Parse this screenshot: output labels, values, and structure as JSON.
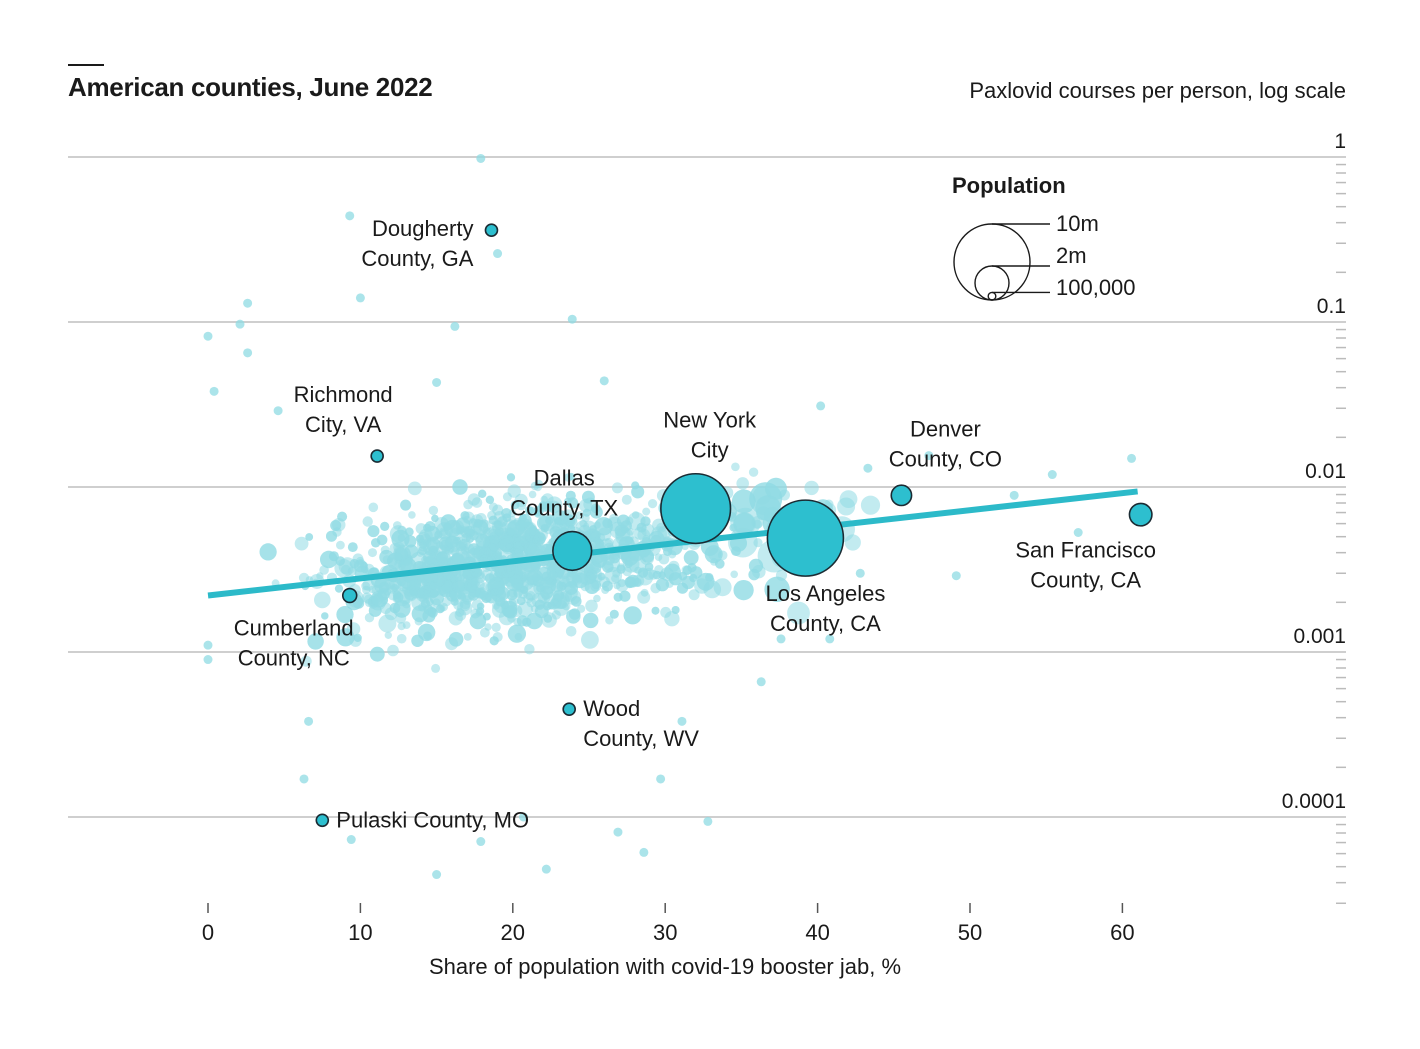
{
  "chart_data": {
    "type": "scatter",
    "title": "American counties, June 2022",
    "ylabel": "Paxlovid courses per person, log scale",
    "xlabel": "Share of population with covid-19 booster jab, %",
    "x_ticks": [
      "0",
      "10",
      "20",
      "30",
      "40",
      "50",
      "60"
    ],
    "x_tick_values": [
      0,
      10,
      20,
      30,
      40,
      50,
      60
    ],
    "xlim": [
      -9,
      75
    ],
    "y_scale": "log",
    "y_ticks": [
      "1",
      "0.1",
      "0.01",
      "0.001",
      "0.0001"
    ],
    "y_tick_values": [
      1,
      0.1,
      0.01,
      0.001,
      0.0001
    ],
    "ylim": [
      2e-05,
      1
    ],
    "trend_line": {
      "x": [
        0,
        61
      ],
      "y": [
        0.0022,
        0.0094
      ]
    },
    "highlighted": [
      {
        "name": "Dougherty County, GA",
        "label": [
          "Dougherty",
          "County, GA"
        ],
        "x": 18.6,
        "y": 0.36,
        "population": 88000,
        "label_pos": "left"
      },
      {
        "name": "Richmond City, VA",
        "label": [
          "Richmond",
          "City, VA"
        ],
        "x": 11.1,
        "y": 0.0154,
        "population": 227000,
        "label_pos": "above-left"
      },
      {
        "name": "Cumberland County, NC",
        "label": [
          "Cumberland",
          "County, NC"
        ],
        "x": 9.3,
        "y": 0.0022,
        "population": 335000,
        "label_pos": "below-left"
      },
      {
        "name": "Dallas County, TX",
        "label": [
          "Dallas",
          "County, TX"
        ],
        "x": 23.9,
        "y": 0.0041,
        "population": 2600000,
        "label_pos": "above"
      },
      {
        "name": "New York City",
        "label": [
          "New York",
          "City"
        ],
        "x": 32.0,
        "y": 0.0074,
        "population": 8400000,
        "label_pos": "above"
      },
      {
        "name": "Los Angeles County, CA",
        "label": [
          "Los Angeles",
          "County, CA"
        ],
        "x": 39.2,
        "y": 0.0049,
        "population": 10000000,
        "label_pos": "below"
      },
      {
        "name": "Denver County, CO",
        "label": [
          "Denver",
          "County, CO"
        ],
        "x": 45.5,
        "y": 0.0089,
        "population": 715000,
        "label_pos": "above"
      },
      {
        "name": "San Francisco County, CA",
        "label": [
          "San Francisco",
          "County, CA"
        ],
        "x": 61.2,
        "y": 0.0068,
        "population": 874000,
        "label_pos": "below-left"
      },
      {
        "name": "Wood County, WV",
        "label": [
          "Wood",
          "County, WV"
        ],
        "x": 23.7,
        "y": 0.00045,
        "population": 84000,
        "label_pos": "right"
      },
      {
        "name": "Pulaski County, MO",
        "label": [
          "Pulaski County, MO"
        ],
        "x": 7.5,
        "y": 9.55e-05,
        "population": 53000,
        "label_pos": "right"
      }
    ],
    "background_counties": {
      "count": 1600,
      "description_stat": "log-normal spread around trend",
      "points": [
        {
          "x": 17.9,
          "y": 0.98
        },
        {
          "x": 9.3,
          "y": 0.44
        },
        {
          "x": 19.0,
          "y": 0.26
        },
        {
          "x": 10.0,
          "y": 0.14
        },
        {
          "x": 2.6,
          "y": 0.13
        },
        {
          "x": 0.0,
          "y": 0.082
        },
        {
          "x": 2.1,
          "y": 0.097
        },
        {
          "x": 16.2,
          "y": 0.094
        },
        {
          "x": 23.9,
          "y": 0.104
        },
        {
          "x": 2.6,
          "y": 0.065
        },
        {
          "x": 0.4,
          "y": 0.038
        },
        {
          "x": 4.6,
          "y": 0.029
        },
        {
          "x": 15.0,
          "y": 0.043
        },
        {
          "x": 26.0,
          "y": 0.044
        },
        {
          "x": 40.2,
          "y": 0.031
        },
        {
          "x": 43.3,
          "y": 0.013
        },
        {
          "x": 47.3,
          "y": 0.0155
        },
        {
          "x": 55.4,
          "y": 0.0119
        },
        {
          "x": 60.6,
          "y": 0.0149
        },
        {
          "x": 52.9,
          "y": 0.0089
        },
        {
          "x": 57.1,
          "y": 0.0053
        },
        {
          "x": 49.1,
          "y": 0.0029
        },
        {
          "x": 42.8,
          "y": 0.003
        },
        {
          "x": 40.8,
          "y": 0.0012
        },
        {
          "x": 37.6,
          "y": 0.0012
        },
        {
          "x": 0.0,
          "y": 0.0009
        },
        {
          "x": 0.0,
          "y": 0.0011
        },
        {
          "x": 6.6,
          "y": 0.00038
        },
        {
          "x": 6.3,
          "y": 0.00017
        },
        {
          "x": 9.4,
          "y": 7.3e-05
        },
        {
          "x": 15.0,
          "y": 4.48e-05
        },
        {
          "x": 22.2,
          "y": 4.83e-05
        },
        {
          "x": 26.9,
          "y": 8.1e-05
        },
        {
          "x": 28.6,
          "y": 6.1e-05
        },
        {
          "x": 32.8,
          "y": 9.4e-05
        },
        {
          "x": 29.7,
          "y": 0.00017
        },
        {
          "x": 31.1,
          "y": 0.00038
        },
        {
          "x": 36.3,
          "y": 0.00066
        },
        {
          "x": 20.7,
          "y": 0.0001
        },
        {
          "x": 17.9,
          "y": 7.1e-05
        }
      ]
    },
    "legend": {
      "title": "Population",
      "items": [
        {
          "label": "10m",
          "value": 10000000
        },
        {
          "label": "2m",
          "value": 2000000
        },
        {
          "label": "100,000",
          "value": 100000
        }
      ],
      "position": "top-right"
    },
    "colors": {
      "highlight_fill": "#2dbfcf",
      "highlight_stroke": "#1b2b33",
      "background_fill": "#8fdbe3",
      "trend": "#2cbac9",
      "grid": "#cfcfcf",
      "axis": "#555555"
    }
  }
}
